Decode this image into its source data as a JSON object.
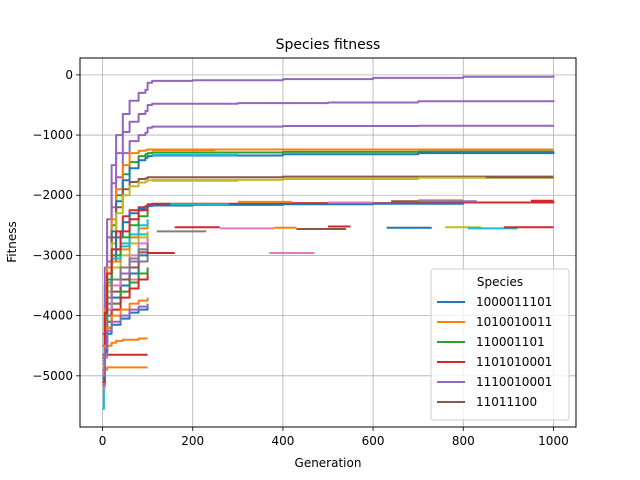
{
  "chart_data": {
    "type": "line",
    "title": "Species fitness",
    "xlabel": "Generation",
    "ylabel": "Fitness",
    "xlim": [
      -50,
      1050
    ],
    "ylim": [
      -5850,
      280
    ],
    "xticks": [
      0,
      200,
      400,
      600,
      800,
      1000
    ],
    "yticks": [
      0,
      -1000,
      -2000,
      -3000,
      -4000,
      -5000
    ],
    "xtick_labels": [
      "0",
      "200",
      "400",
      "600",
      "800",
      "1000"
    ],
    "ytick_labels": [
      "0",
      "−1000",
      "−2000",
      "−3000",
      "−4000",
      "−5000"
    ],
    "grid": true,
    "legend": {
      "title": "Species",
      "placement": "lower-right",
      "entries": [
        "1000011101",
        "1010010011",
        "110001101",
        "1101010001",
        "1110010001",
        "11011100"
      ]
    },
    "palette": [
      "#1f77b4",
      "#ff7f0e",
      "#2ca02c",
      "#d62728",
      "#9467bd",
      "#8c564b",
      "#e377c2",
      "#7f7f7f",
      "#bcbd22",
      "#17becf"
    ],
    "series": [
      {
        "name": "1110010001",
        "color": "#9467bd",
        "x": [
          0,
          5,
          10,
          20,
          30,
          45,
          60,
          80,
          95,
          100,
          110,
          200,
          400,
          600,
          800,
          1000
        ],
        "y": [
          -4300,
          -3200,
          -2400,
          -1500,
          -1000,
          -650,
          -430,
          -300,
          -250,
          -130,
          -100,
          -90,
          -70,
          -50,
          -30,
          -10
        ]
      },
      {
        "name": "1110010001",
        "color": "#9467bd",
        "x": [
          0,
          5,
          10,
          20,
          30,
          45,
          60,
          80,
          95,
          100,
          110,
          300,
          500,
          700,
          1000
        ],
        "y": [
          -4500,
          -3500,
          -2700,
          -1800,
          -1300,
          -950,
          -780,
          -650,
          -600,
          -500,
          -480,
          -470,
          -460,
          -440,
          -420
        ]
      },
      {
        "name": "1110010001",
        "color": "#9467bd",
        "x": [
          0,
          5,
          10,
          20,
          30,
          45,
          60,
          80,
          95,
          100,
          110,
          400,
          700,
          1000
        ],
        "y": [
          -4700,
          -3800,
          -3100,
          -2200,
          -1700,
          -1300,
          -1100,
          -1000,
          -960,
          -880,
          -860,
          -850,
          -845,
          -840
        ]
      },
      {
        "name": "110001101",
        "color": "#2ca02c",
        "x": [
          0,
          5,
          10,
          20,
          30,
          45,
          60,
          80,
          95,
          100,
          110,
          400,
          700,
          1000
        ],
        "y": [
          -4800,
          -4000,
          -3300,
          -2500,
          -2000,
          -1650,
          -1450,
          -1350,
          -1320,
          -1300,
          -1290,
          -1280,
          -1275,
          -1270
        ]
      },
      {
        "name": "1010010011",
        "color": "#ff7f0e",
        "x": [
          0,
          5,
          10,
          20,
          30,
          45,
          60,
          80,
          95,
          100,
          110,
          400,
          700,
          1000
        ],
        "y": [
          -4700,
          -3900,
          -3200,
          -2400,
          -1900,
          -1500,
          -1300,
          -1260,
          -1250,
          -1240,
          -1240,
          -1240,
          -1240,
          -1240
        ]
      },
      {
        "name": "1000011101",
        "color": "#1f77b4",
        "x": [
          0,
          5,
          10,
          20,
          30,
          45,
          60,
          80,
          95,
          100,
          110,
          400,
          700,
          1000
        ],
        "y": [
          -4900,
          -4100,
          -3400,
          -2600,
          -2100,
          -1750,
          -1550,
          -1420,
          -1380,
          -1350,
          -1340,
          -1320,
          -1300,
          -1280
        ]
      },
      {
        "name": "11011100",
        "color": "#8c564b",
        "x": [
          0,
          5,
          10,
          20,
          30,
          45,
          60,
          80,
          95,
          100,
          110,
          400,
          700,
          1000
        ],
        "y": [
          -4950,
          -4200,
          -3500,
          -2700,
          -2200,
          -1900,
          -1780,
          -1730,
          -1720,
          -1700,
          -1700,
          -1690,
          -1690,
          -1690
        ]
      },
      {
        "name": "110001101",
        "color": "#bcbd22",
        "x": [
          0,
          5,
          10,
          20,
          30,
          45,
          60,
          80,
          95,
          100,
          110,
          400,
          700,
          1000
        ],
        "y": [
          -5000,
          -4300,
          -3600,
          -2800,
          -2300,
          -2000,
          -1850,
          -1790,
          -1770,
          -1750,
          -1745,
          -1730,
          -1710,
          -1700
        ]
      },
      {
        "name": "1101010001",
        "color": "#d62728",
        "x": [
          0,
          5,
          10,
          20,
          30,
          45,
          60,
          80,
          95,
          100,
          110,
          400,
          700,
          1000
        ],
        "y": [
          -5050,
          -4400,
          -3800,
          -3000,
          -2600,
          -2350,
          -2250,
          -2200,
          -2180,
          -2150,
          -2140,
          -2130,
          -2120,
          -2100
        ]
      },
      {
        "name": "1000011101",
        "color": "#1f77b4",
        "x": [
          0,
          5,
          10,
          20,
          30,
          45,
          60,
          80,
          95,
          100,
          110,
          200,
          400,
          600,
          800
        ],
        "y": [
          -5100,
          -4500,
          -3900,
          -3100,
          -2700,
          -2450,
          -2300,
          -2220,
          -2200,
          -2180,
          -2170,
          -2160,
          -2150,
          -2140,
          -2130
        ]
      },
      {
        "name": "1101010001",
        "color": "#d62728",
        "x": [
          0,
          5,
          10,
          20,
          30,
          45,
          60,
          80,
          95,
          100
        ],
        "y": [
          -4900,
          -4700,
          -4650,
          -4650,
          -4650,
          -4650,
          -4650,
          -4650,
          -4650,
          -4650
        ]
      },
      {
        "name": "1010010011",
        "color": "#ff7f0e",
        "x": [
          0,
          5,
          10,
          20,
          30,
          45,
          60,
          80,
          95,
          100
        ],
        "y": [
          -4800,
          -4600,
          -4500,
          -4450,
          -4420,
          -4400,
          -4400,
          -4380,
          -4380,
          -4380
        ]
      },
      {
        "name": "1010010011",
        "color": "#ff7f0e",
        "x": [
          0,
          5,
          10,
          40,
          100
        ],
        "y": [
          -5000,
          -4900,
          -4860,
          -4860,
          -4860
        ]
      },
      {
        "name": "1000011101",
        "color": "#17becf",
        "x": [
          0,
          3,
          5,
          10,
          20,
          40,
          60,
          80,
          100
        ],
        "y": [
          -5550,
          -5000,
          -4300,
          -3500,
          -2900,
          -2800,
          -2700,
          -2650,
          -2600
        ]
      },
      {
        "name": "1110010001",
        "color": "#e377c2",
        "x": [
          0,
          5,
          10,
          20,
          40,
          60,
          80,
          100
        ],
        "y": [
          -5200,
          -4700,
          -4200,
          -3800,
          -3600,
          -3400,
          -3300,
          -3200
        ]
      },
      {
        "name": "11011100",
        "color": "#7f7f7f",
        "x": [
          0,
          5,
          10,
          20,
          40,
          60,
          80,
          100
        ],
        "y": [
          -5150,
          -4650,
          -4100,
          -3700,
          -3500,
          -3300,
          -3100,
          -3000
        ]
      },
      {
        "name": "1000011101",
        "color": "#1f77b4",
        "x": [
          0,
          5,
          10,
          20,
          40,
          60,
          80,
          100
        ],
        "y": [
          -5000,
          -4500,
          -4000,
          -3700,
          -3500,
          -3300,
          -3000,
          -2900
        ]
      },
      {
        "name": "11011100",
        "color": "#8c564b",
        "x": [
          0,
          5,
          10,
          20,
          40,
          60,
          80,
          100
        ],
        "y": [
          -4950,
          -4400,
          -3900,
          -3600,
          -3400,
          -3200,
          -2950,
          -2800
        ]
      },
      {
        "name": "1110010001",
        "color": "#9467bd",
        "x": [
          0,
          5,
          10,
          20,
          40,
          60,
          80,
          100
        ],
        "y": [
          -4900,
          -4300,
          -3800,
          -3500,
          -3300,
          -3100,
          -2900,
          -2700
        ]
      },
      {
        "name": "110001101",
        "color": "#2ca02c",
        "x": [
          0,
          5,
          10,
          20,
          40,
          60,
          80,
          100
        ],
        "y": [
          -5050,
          -4550,
          -4100,
          -3800,
          -3600,
          -3450,
          -3300,
          -3200
        ]
      },
      {
        "name": "1101010001",
        "color": "#d62728",
        "x": [
          0,
          5,
          10,
          20,
          40,
          60,
          80,
          100
        ],
        "y": [
          -5100,
          -4600,
          -4200,
          -3900,
          -3700,
          -3550,
          -3400,
          -3300
        ]
      },
      {
        "name": "11011100",
        "color": "#bcbd22",
        "x": [
          0,
          5,
          10,
          20,
          40,
          60,
          80,
          100
        ],
        "y": [
          -4850,
          -4200,
          -3600,
          -3200,
          -3000,
          -2800,
          -2700,
          -2600
        ]
      },
      {
        "name": "1010010011",
        "color": "#ff7f0e",
        "x": [
          0,
          5,
          10,
          20,
          40,
          60,
          80,
          100
        ],
        "y": [
          -4800,
          -4100,
          -3500,
          -3100,
          -2900,
          -2700,
          -2550,
          -2500
        ]
      },
      {
        "name": "1110010001",
        "color": "#e377c2",
        "x": [
          0,
          5,
          10,
          20,
          40,
          60,
          80,
          100
        ],
        "y": [
          -5000,
          -4400,
          -3900,
          -3500,
          -3200,
          -3000,
          -2800,
          -2700
        ]
      },
      {
        "name": "1000011101",
        "color": "#17becf",
        "x": [
          0,
          5,
          10,
          20,
          40,
          60,
          80,
          100
        ],
        "y": [
          -4750,
          -4050,
          -3450,
          -3050,
          -2850,
          -2650,
          -2500,
          -2400
        ]
      },
      {
        "name": "11011100",
        "color": "#7f7f7f",
        "x": [
          0,
          5,
          10,
          20,
          40,
          60,
          80,
          100
        ],
        "y": [
          -4900,
          -4250,
          -3700,
          -3400,
          -3200,
          -3050,
          -2900,
          -2800
        ]
      },
      {
        "name": "110001101",
        "color": "#2ca02c",
        "x": [
          0,
          5,
          10,
          20,
          40,
          60,
          80,
          100
        ],
        "y": [
          -4700,
          -4000,
          -3400,
          -3000,
          -2700,
          -2500,
          -2350,
          -2250
        ]
      },
      {
        "name": "1101010001",
        "color": "#d62728",
        "x": [
          0,
          5,
          10,
          20,
          40,
          60,
          80,
          100
        ],
        "y": [
          -4650,
          -3950,
          -3300,
          -2900,
          -2600,
          -2400,
          -2250,
          -2150
        ]
      },
      {
        "name": "1010010011",
        "color": "#ff7f0e",
        "x": [
          0,
          5,
          10,
          20,
          40,
          60,
          80,
          100
        ],
        "y": [
          -4950,
          -4500,
          -4200,
          -4000,
          -3900,
          -3800,
          -3750,
          -3700
        ]
      },
      {
        "name": "1000011101",
        "color": "#1f77b4",
        "x": [
          0,
          5,
          10,
          20,
          40,
          60,
          80,
          100
        ],
        "y": [
          -5050,
          -4600,
          -4300,
          -4150,
          -4050,
          -3950,
          -3900,
          -3850
        ]
      },
      {
        "name": "1110010001",
        "color": "#9467bd",
        "x": [
          0,
          5,
          10,
          20,
          40,
          60,
          80,
          100
        ],
        "y": [
          -5000,
          -4550,
          -4250,
          -4100,
          -4000,
          -3900,
          -3850,
          -3800
        ]
      },
      {
        "name": "1101010001",
        "color": "#d62728",
        "x": [
          100,
          160
        ],
        "y": [
          -2960,
          -2960
        ]
      },
      {
        "name": "1110010001",
        "color": "#e377c2",
        "x": [
          370,
          470
        ],
        "y": [
          -2960,
          -2960
        ]
      },
      {
        "name": "11011100",
        "color": "#7f7f7f",
        "x": [
          120,
          230
        ],
        "y": [
          -2600,
          -2600
        ]
      },
      {
        "name": "1101010001",
        "color": "#d62728",
        "x": [
          160,
          260
        ],
        "y": [
          -2530,
          -2530
        ]
      },
      {
        "name": "1110010001",
        "color": "#e377c2",
        "x": [
          260,
          380
        ],
        "y": [
          -2550,
          -2550
        ]
      },
      {
        "name": "1010010011",
        "color": "#ff7f0e",
        "x": [
          380,
          430
        ],
        "y": [
          -2540,
          -2540
        ]
      },
      {
        "name": "11011100",
        "color": "#8c564b",
        "x": [
          430,
          540
        ],
        "y": [
          -2560,
          -2560
        ]
      },
      {
        "name": "1101010001",
        "color": "#d62728",
        "x": [
          500,
          550
        ],
        "y": [
          -2520,
          -2520
        ]
      },
      {
        "name": "1000011101",
        "color": "#1f77b4",
        "x": [
          630,
          730
        ],
        "y": [
          -2540,
          -2540
        ]
      },
      {
        "name": "110001101",
        "color": "#bcbd22",
        "x": [
          760,
          840
        ],
        "y": [
          -2530,
          -2530
        ]
      },
      {
        "name": "1000011101",
        "color": "#17becf",
        "x": [
          810,
          920
        ],
        "y": [
          -2550,
          -2550
        ]
      },
      {
        "name": "1101010001",
        "color": "#d62728",
        "x": [
          890,
          1000
        ],
        "y": [
          -2530,
          -2530
        ]
      },
      {
        "name": "11011100",
        "color": "#8c564b",
        "x": [
          640,
          780
        ],
        "y": [
          -2100,
          -2100
        ]
      },
      {
        "name": "1110010001",
        "color": "#e377c2",
        "x": [
          500,
          600
        ],
        "y": [
          -2120,
          -2120
        ]
      },
      {
        "name": "1010010011",
        "color": "#ff7f0e",
        "x": [
          300,
          420
        ],
        "y": [
          -2110,
          -2110
        ]
      },
      {
        "name": "110001101",
        "color": "#bcbd22",
        "x": [
          700,
          800
        ],
        "y": [
          -2080,
          -2080
        ]
      },
      {
        "name": "1000011101",
        "color": "#17becf",
        "x": [
          150,
          280
        ],
        "y": [
          -2150,
          -2150
        ]
      },
      {
        "name": "11011100",
        "color": "#8c564b",
        "x": [
          850,
          1000
        ],
        "y": [
          -1700,
          -1700
        ]
      },
      {
        "name": "1101010001",
        "color": "#d62728",
        "x": [
          950,
          1000
        ],
        "y": [
          -2090,
          -2090
        ]
      },
      {
        "name": "1110010001",
        "color": "#9467bd",
        "x": [
          700,
          830
        ],
        "y": [
          -2100,
          -2100
        ]
      },
      {
        "name": "110001101",
        "color": "#bcbd22",
        "x": [
          110,
          300
        ],
        "y": [
          -1760,
          -1760
        ]
      },
      {
        "name": "1010010011",
        "color": "#ff7f0e",
        "x": [
          110,
          250
        ],
        "y": [
          -1250,
          -1250
        ]
      },
      {
        "name": "1000011101",
        "color": "#17becf",
        "x": [
          110,
          300
        ],
        "y": [
          -1330,
          -1330
        ]
      }
    ]
  }
}
